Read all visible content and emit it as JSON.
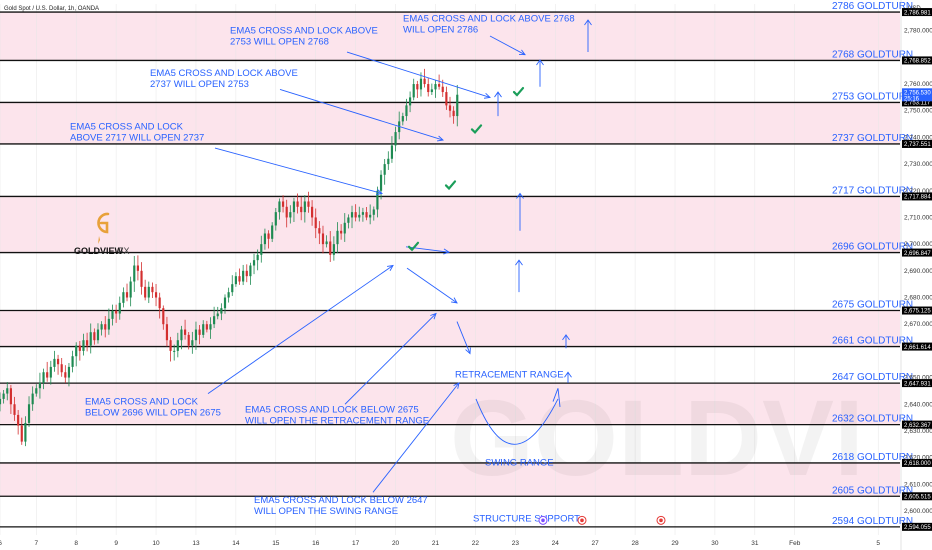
{
  "header": {
    "title": "Gold Spot / U.S. Dollar, 1h, OANDA",
    "currency": "USD"
  },
  "logo": {
    "brand_main": "GOLDVIEW",
    "brand_suffix": "FX",
    "watermark": "GOLDVI"
  },
  "colors": {
    "band_pink": "#fce4ec",
    "line_black": "#111111",
    "accent_blue": "#2962ff",
    "candle_up": "#1e8a52",
    "candle_down": "#d32f2f",
    "check_green": "#1b9e5a",
    "logo_orange": "#e8a13a",
    "price_tag": "#000000",
    "current_tag": "#2962ff"
  },
  "chart_data": {
    "type": "candlestick",
    "title": "Gold Spot / U.S. Dollar, 1h, OANDA",
    "ylim": [
      2591,
      2790
    ],
    "levels": [
      {
        "price": 2786.981,
        "label": "2786 GOLDTURN",
        "tag": "2,786.981"
      },
      {
        "price": 2768.852,
        "label": "2768 GOLDTURN",
        "tag": "2,768.852"
      },
      {
        "price": 2753.117,
        "label": "2753 GOLDTURN",
        "tag": "2,753.117"
      },
      {
        "price": 2737.551,
        "label": "2737 GOLDTURN",
        "tag": "2,737.551"
      },
      {
        "price": 2717.884,
        "label": "2717 GOLDTURN",
        "tag": "2,717.884"
      },
      {
        "price": 2696.847,
        "label": "2696 GOLDTURN",
        "tag": "2,696.847"
      },
      {
        "price": 2675.125,
        "label": "2675 GOLDTURN",
        "tag": "2,675.125"
      },
      {
        "price": 2661.614,
        "label": "2661 GOLDTURN",
        "tag": "2,661.614"
      },
      {
        "price": 2647.931,
        "label": "2647 GOLDTURN",
        "tag": "2,647.931"
      },
      {
        "price": 2632.367,
        "label": "2632 GOLDTURN",
        "tag": "2,632.367"
      },
      {
        "price": 2618.0,
        "label": "2618 GOLDTURN",
        "tag": "2,618.000"
      },
      {
        "price": 2605.515,
        "label": "2605 GOLDTURN",
        "tag": "2,605.515"
      },
      {
        "price": 2594.055,
        "label": "2594 GOLDTURN",
        "tag": "2,594.055"
      }
    ],
    "current_price": {
      "price": 2756.53,
      "tag": "2,756.530",
      "countdown": "25:16"
    },
    "y_ticks": [
      "2,780.000",
      "2,760.000",
      "2,750.000",
      "2,740.000",
      "2,730.000",
      "2,720.000",
      "2,710.000",
      "2,700.000",
      "2,690.000",
      "2,680.000",
      "2,670.000",
      "2,650.000",
      "2,640.000",
      "2,630.000",
      "2,620.000",
      "2,610.000",
      "2,600.000"
    ],
    "y_tick_values": [
      2780,
      2760,
      2750,
      2740,
      2730,
      2720,
      2710,
      2700,
      2690,
      2680,
      2670,
      2650,
      2640,
      2630,
      2620,
      2610,
      2600
    ],
    "x_ticks": [
      {
        "label": "6",
        "i": 0
      },
      {
        "label": "7",
        "i": 10
      },
      {
        "label": "8",
        "i": 21
      },
      {
        "label": "9",
        "i": 32
      },
      {
        "label": "10",
        "i": 43
      },
      {
        "label": "13",
        "i": 54
      },
      {
        "label": "14",
        "i": 65
      },
      {
        "label": "15",
        "i": 76
      },
      {
        "label": "16",
        "i": 87
      },
      {
        "label": "17",
        "i": 98
      },
      {
        "label": "20",
        "i": 109
      },
      {
        "label": "21",
        "i": 120
      },
      {
        "label": "22",
        "i": 131
      },
      {
        "label": "23",
        "i": 142
      },
      {
        "label": "24",
        "i": 153
      },
      {
        "label": "27",
        "i": 164
      },
      {
        "label": "28",
        "i": 175
      },
      {
        "label": "29",
        "i": 186
      },
      {
        "label": "30",
        "i": 197
      },
      {
        "label": "31",
        "i": 208
      },
      {
        "label": "Feb",
        "i": 219
      },
      {
        "label": "5",
        "i": 242
      }
    ],
    "close": [
      2642,
      2644,
      2646,
      2640,
      2636,
      2632,
      2626,
      2633,
      2640,
      2644,
      2646,
      2648,
      2652,
      2650,
      2654,
      2657,
      2655,
      2652,
      2650,
      2654,
      2658,
      2662,
      2660,
      2664,
      2662,
      2667,
      2664,
      2668,
      2670,
      2668,
      2672,
      2675,
      2674,
      2678,
      2682,
      2680,
      2686,
      2692,
      2690,
      2684,
      2680,
      2684,
      2682,
      2680,
      2676,
      2670,
      2664,
      2660,
      2660,
      2664,
      2668,
      2666,
      2662,
      2664,
      2668,
      2666,
      2670,
      2668,
      2670,
      2673,
      2674,
      2676,
      2680,
      2682,
      2685,
      2688,
      2686,
      2690,
      2688,
      2692,
      2694,
      2696,
      2700,
      2704,
      2702,
      2707,
      2712,
      2716,
      2714,
      2710,
      2712,
      2716,
      2714,
      2712,
      2716,
      2714,
      2710,
      2706,
      2704,
      2700,
      2701,
      2696,
      2700,
      2705,
      2704,
      2708,
      2710,
      2712,
      2710,
      2711,
      2712,
      2710,
      2711,
      2713,
      2720,
      2726,
      2730,
      2732,
      2737,
      2742,
      2746,
      2748,
      2752,
      2755,
      2760,
      2758,
      2762,
      2760,
      2757,
      2758,
      2760,
      2759,
      2757,
      2752,
      2750,
      2748,
      2756
    ],
    "candle_range": [
      0,
      126
    ],
    "x_range": [
      0,
      248
    ]
  },
  "annotations": [
    {
      "lines": [
        "EMA5 CROSS AND LOCK ABOVE",
        "2753 WILL OPEN 2768"
      ]
    },
    {
      "lines": [
        "EMA5 CROSS AND LOCK ABOVE 2768",
        "WILL OPEN 2786"
      ]
    },
    {
      "lines": [
        "EMA5 CROSS AND LOCK ABOVE",
        "2737 WILL OPEN 2753"
      ]
    },
    {
      "lines": [
        "EMA5 CROSS AND LOCK",
        "ABOVE 2717 WILL OPEN 2737"
      ]
    },
    {
      "lines": [
        "EMA5 CROSS AND LOCK",
        "BELOW 2696 WILL OPEN 2675"
      ]
    },
    {
      "lines": [
        "EMA5 CROSS AND LOCK BELOW 2675",
        "WILL OPEN THE RETRACEMENT RANGE"
      ]
    },
    {
      "lines": [
        "EMA5 CROSS AND LOCK BELOW 2647",
        "WILL OPEN THE SWING RANGE"
      ]
    },
    {
      "lines": [
        "RETRACEMENT RANGE"
      ]
    },
    {
      "lines": [
        "SWING RANGE"
      ]
    },
    {
      "lines": [
        "STRUCTURE SUPPORT"
      ]
    }
  ],
  "icons": [
    "up-arrow-icon",
    "down-arrow-icon",
    "checkmark-icon",
    "flag-icon",
    "lightning-icon"
  ]
}
